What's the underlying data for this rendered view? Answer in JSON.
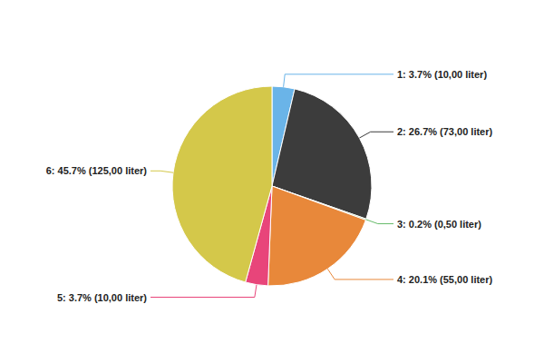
{
  "chart_data": {
    "type": "pie",
    "categories": [
      "1: 3.7% (10,00 liter)",
      "2: 26.7% (73,00 liter)",
      "3: 0.2% (0,50 liter)",
      "4: 20.1% (55,00 liter)",
      "5: 3.7% (10,00 liter)",
      "6: 45.7% (125,00 liter)"
    ],
    "values": [
      10.0,
      73.0,
      0.5,
      55.0,
      10.0,
      125.0
    ],
    "colors": [
      "#6ab4e8",
      "#3c3c3c",
      "#66bb6a",
      "#e8883a",
      "#e8457a",
      "#d4c84a"
    ]
  }
}
